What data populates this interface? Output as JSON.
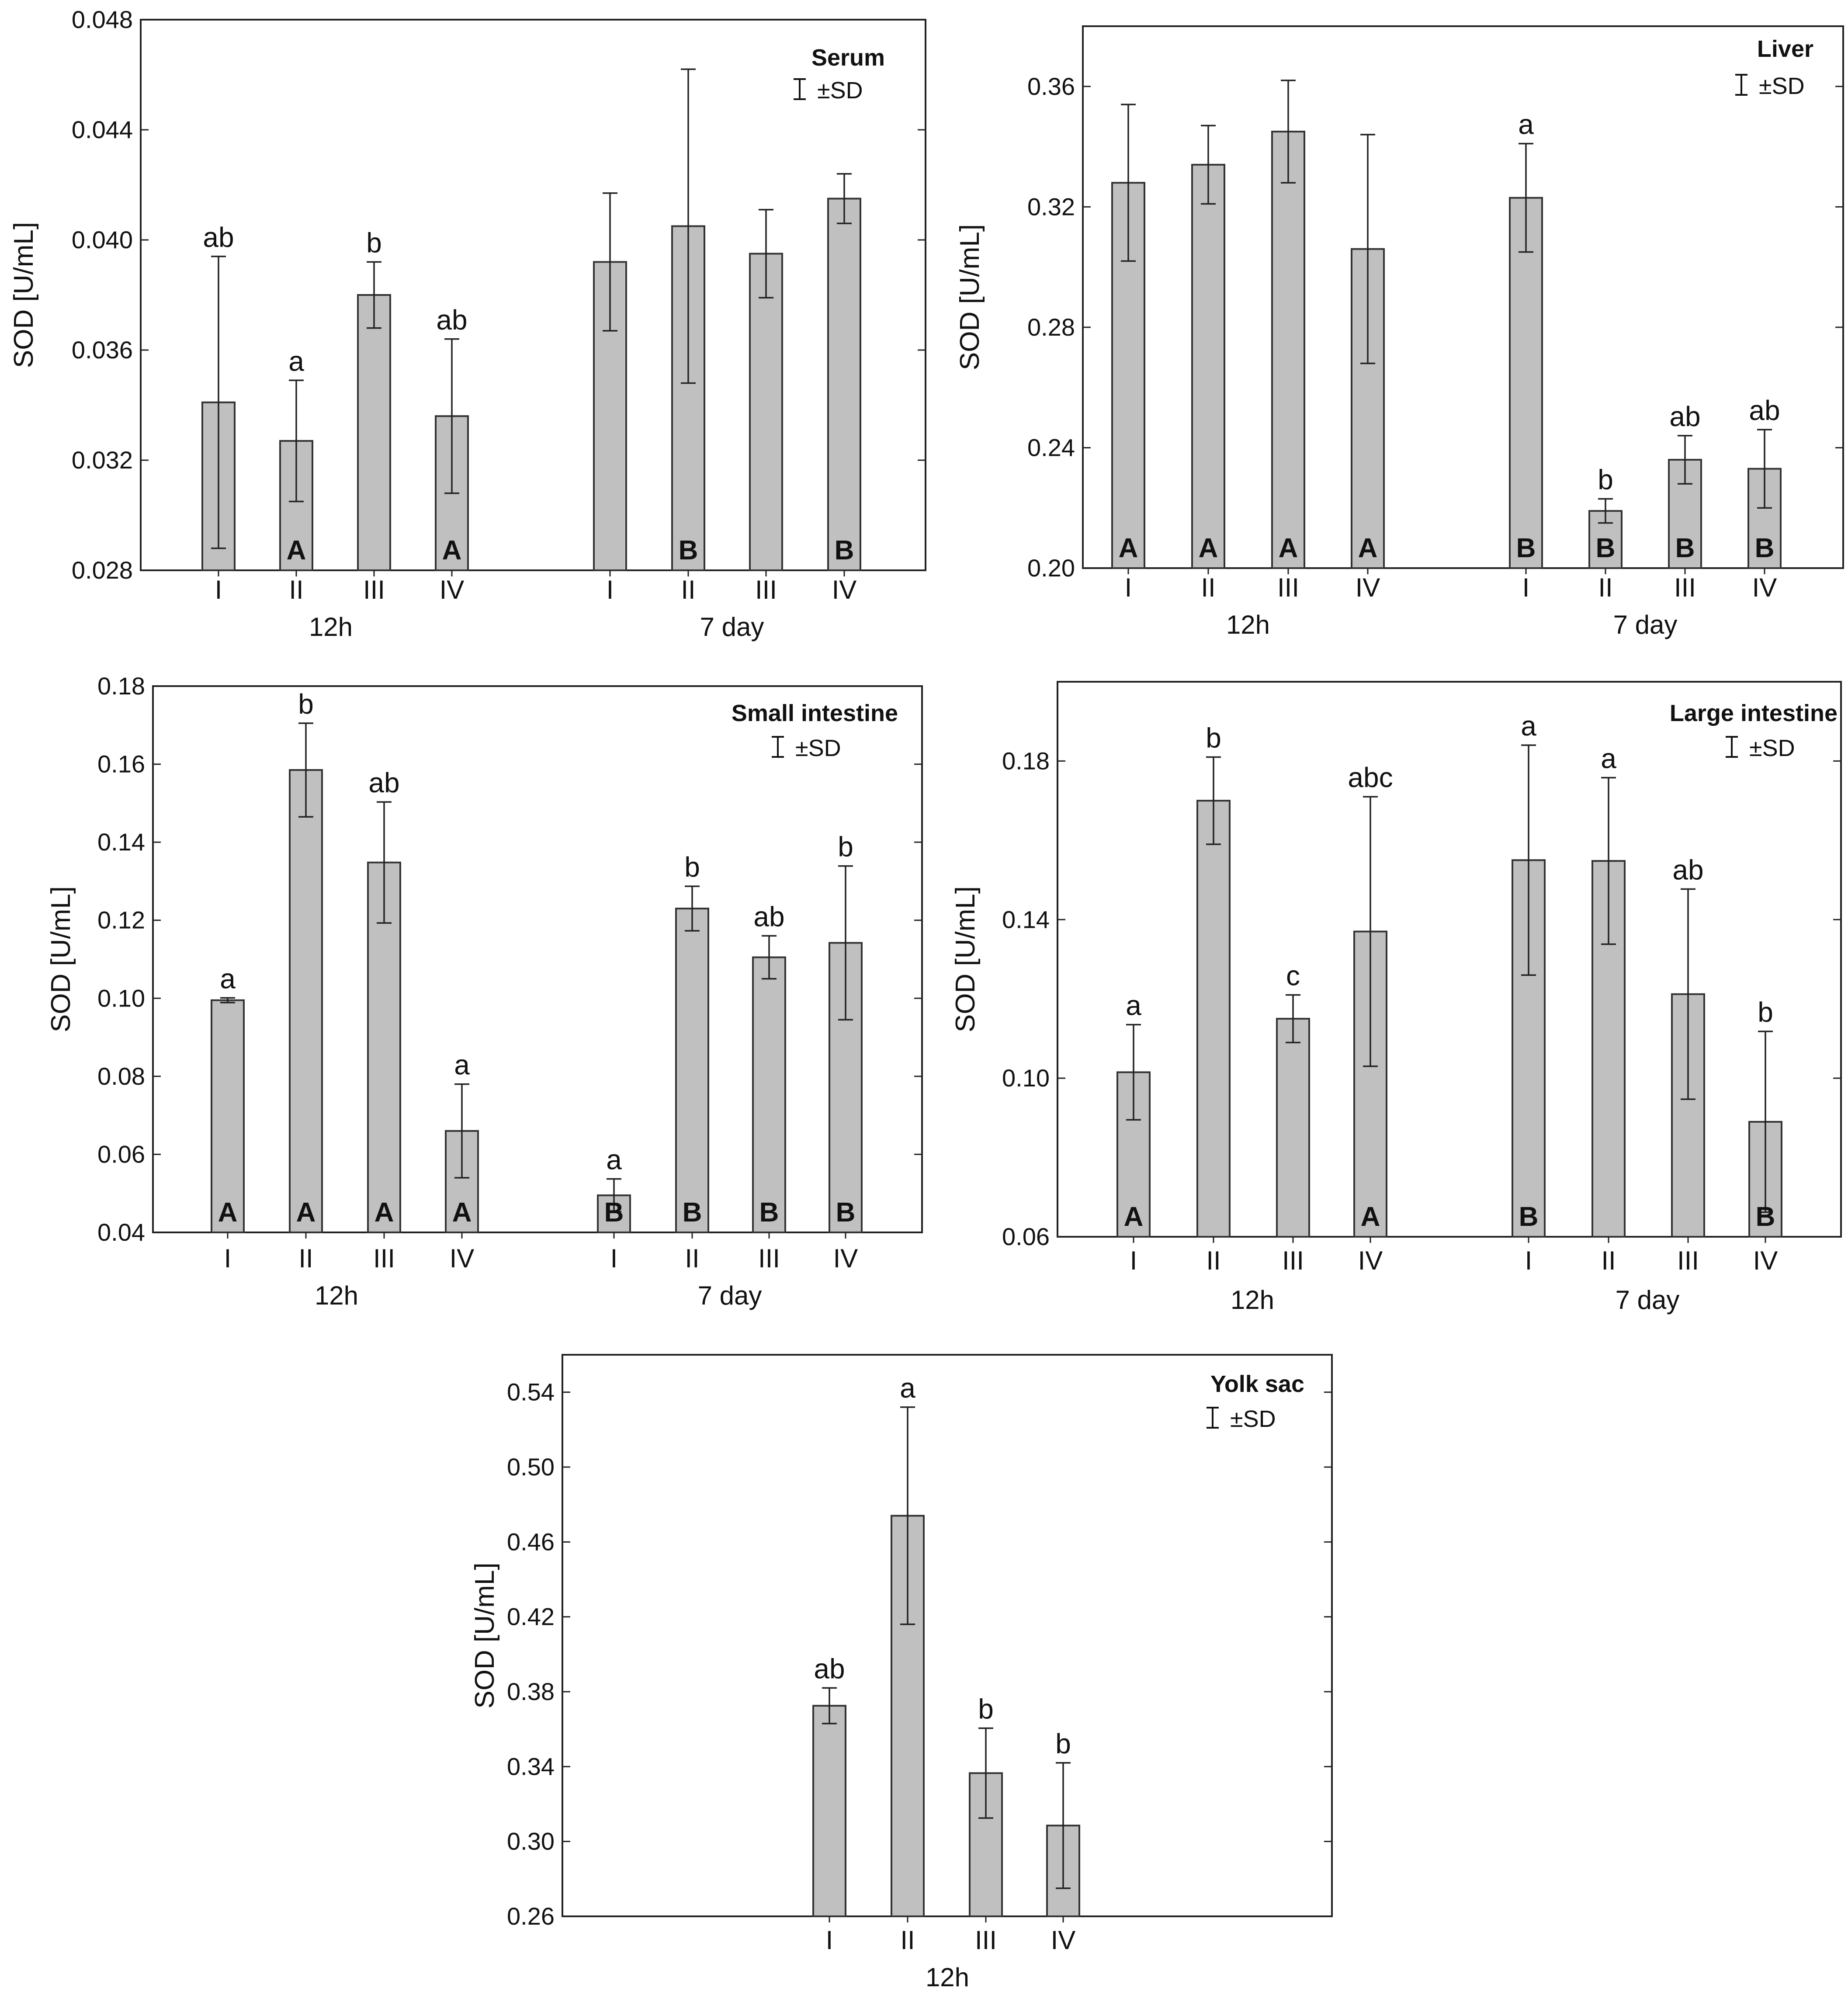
{
  "figure": {
    "legend_symbol": "I",
    "legend_text": "±SD",
    "colors": {
      "bar_fill": "#c0c0c0",
      "bar_stroke": "#333333",
      "text": "#111111"
    }
  },
  "chart_data": [
    {
      "type": "bar",
      "title": "Serum",
      "ylabel": "SOD [U/mL]",
      "ylim": [
        0.028,
        0.048
      ],
      "yticks": [
        "0.028",
        "0.032",
        "0.036",
        "0.040",
        "0.044",
        "0.048"
      ],
      "groups": [
        {
          "name": "12h",
          "categories": [
            "I",
            "II",
            "III",
            "IV"
          ],
          "values": [
            0.0341,
            0.0327,
            0.038,
            0.0336
          ],
          "sd": [
            0.0053,
            0.0022,
            0.0012,
            0.0028
          ],
          "letters": [
            "ab",
            "a",
            "b",
            "ab"
          ],
          "time_letters": [
            "",
            "A",
            "",
            "A"
          ]
        },
        {
          "name": "7 day",
          "categories": [
            "I",
            "II",
            "III",
            "IV"
          ],
          "values": [
            0.0392,
            0.0405,
            0.0395,
            0.0415
          ],
          "sd": [
            0.0025,
            0.0057,
            0.0016,
            0.0009
          ],
          "letters": [
            "",
            "",
            "",
            ""
          ],
          "time_letters": [
            "",
            "B",
            "",
            "B"
          ]
        }
      ]
    },
    {
      "type": "bar",
      "title": "Liver",
      "ylabel": "SOD [U/mL]",
      "ylim": [
        0.2,
        0.38
      ],
      "yticks": [
        "0.20",
        "0.24",
        "0.28",
        "0.32",
        "0.36"
      ],
      "groups": [
        {
          "name": "12h",
          "categories": [
            "I",
            "II",
            "III",
            "IV"
          ],
          "values": [
            0.328,
            0.334,
            0.345,
            0.306
          ],
          "sd": [
            0.026,
            0.013,
            0.017,
            0.038
          ],
          "letters": [
            "",
            "",
            "",
            ""
          ],
          "time_letters": [
            "A",
            "A",
            "A",
            "A"
          ]
        },
        {
          "name": "7 day",
          "categories": [
            "I",
            "II",
            "III",
            "IV"
          ],
          "values": [
            0.323,
            0.219,
            0.236,
            0.233
          ],
          "sd": [
            0.018,
            0.004,
            0.008,
            0.013
          ],
          "letters": [
            "a",
            "b",
            "ab",
            "ab"
          ],
          "time_letters": [
            "B",
            "B",
            "B",
            "B"
          ]
        }
      ]
    },
    {
      "type": "bar",
      "title": "Small intestine",
      "ylabel": "SOD [U/mL]",
      "ylim": [
        0.04,
        0.18
      ],
      "yticks": [
        "0.04",
        "0.06",
        "0.08",
        "0.10",
        "0.12",
        "0.14",
        "0.16",
        "0.18"
      ],
      "groups": [
        {
          "name": "12h",
          "categories": [
            "I",
            "II",
            "III",
            "IV"
          ],
          "values": [
            0.0995,
            0.1585,
            0.1348,
            0.066
          ],
          "sd": [
            0.0006,
            0.012,
            0.0155,
            0.012
          ],
          "letters": [
            "a",
            "b",
            "ab",
            "a"
          ],
          "time_letters": [
            "A",
            "A",
            "A",
            "A"
          ]
        },
        {
          "name": "7 day",
          "categories": [
            "I",
            "II",
            "III",
            "IV"
          ],
          "values": [
            0.0495,
            0.123,
            0.1105,
            0.1142
          ],
          "sd": [
            0.0042,
            0.0057,
            0.0055,
            0.0197
          ],
          "letters": [
            "a",
            "b",
            "ab",
            "b"
          ],
          "time_letters": [
            "B",
            "B",
            "B",
            "B"
          ]
        }
      ]
    },
    {
      "type": "bar",
      "title": "Large intestine",
      "ylabel": "SOD [U/mL]",
      "ylim": [
        0.06,
        0.2
      ],
      "yticks": [
        "0.06",
        "0.10",
        "0.14",
        "0.18"
      ],
      "groups": [
        {
          "name": "12h",
          "categories": [
            "I",
            "II",
            "III",
            "IV"
          ],
          "values": [
            0.1015,
            0.17,
            0.115,
            0.137
          ],
          "sd": [
            0.012,
            0.011,
            0.006,
            0.034
          ],
          "letters": [
            "a",
            "b",
            "c",
            "abc"
          ],
          "time_letters": [
            "A",
            "",
            "",
            "A"
          ]
        },
        {
          "name": "7 day",
          "categories": [
            "I",
            "II",
            "III",
            "IV"
          ],
          "values": [
            0.155,
            0.1548,
            0.1212,
            0.089
          ],
          "sd": [
            0.029,
            0.021,
            0.0265,
            0.0228
          ],
          "letters": [
            "a",
            "a",
            "ab",
            "b"
          ],
          "time_letters": [
            "B",
            "",
            "",
            "B"
          ]
        }
      ]
    },
    {
      "type": "bar",
      "title": "Yolk sac",
      "ylabel": "SOD [U/mL]",
      "ylim": [
        0.26,
        0.56
      ],
      "yticks": [
        "0.26",
        "0.30",
        "0.34",
        "0.38",
        "0.42",
        "0.46",
        "0.50",
        "0.54"
      ],
      "groups": [
        {
          "name": "12h",
          "categories": [
            "I",
            "II",
            "III",
            "IV"
          ],
          "values": [
            0.3725,
            0.474,
            0.3365,
            0.3085
          ],
          "sd": [
            0.0095,
            0.058,
            0.024,
            0.0335
          ],
          "letters": [
            "ab",
            "a",
            "b",
            "b"
          ],
          "time_letters": [
            "",
            "",
            "",
            ""
          ]
        }
      ]
    }
  ]
}
